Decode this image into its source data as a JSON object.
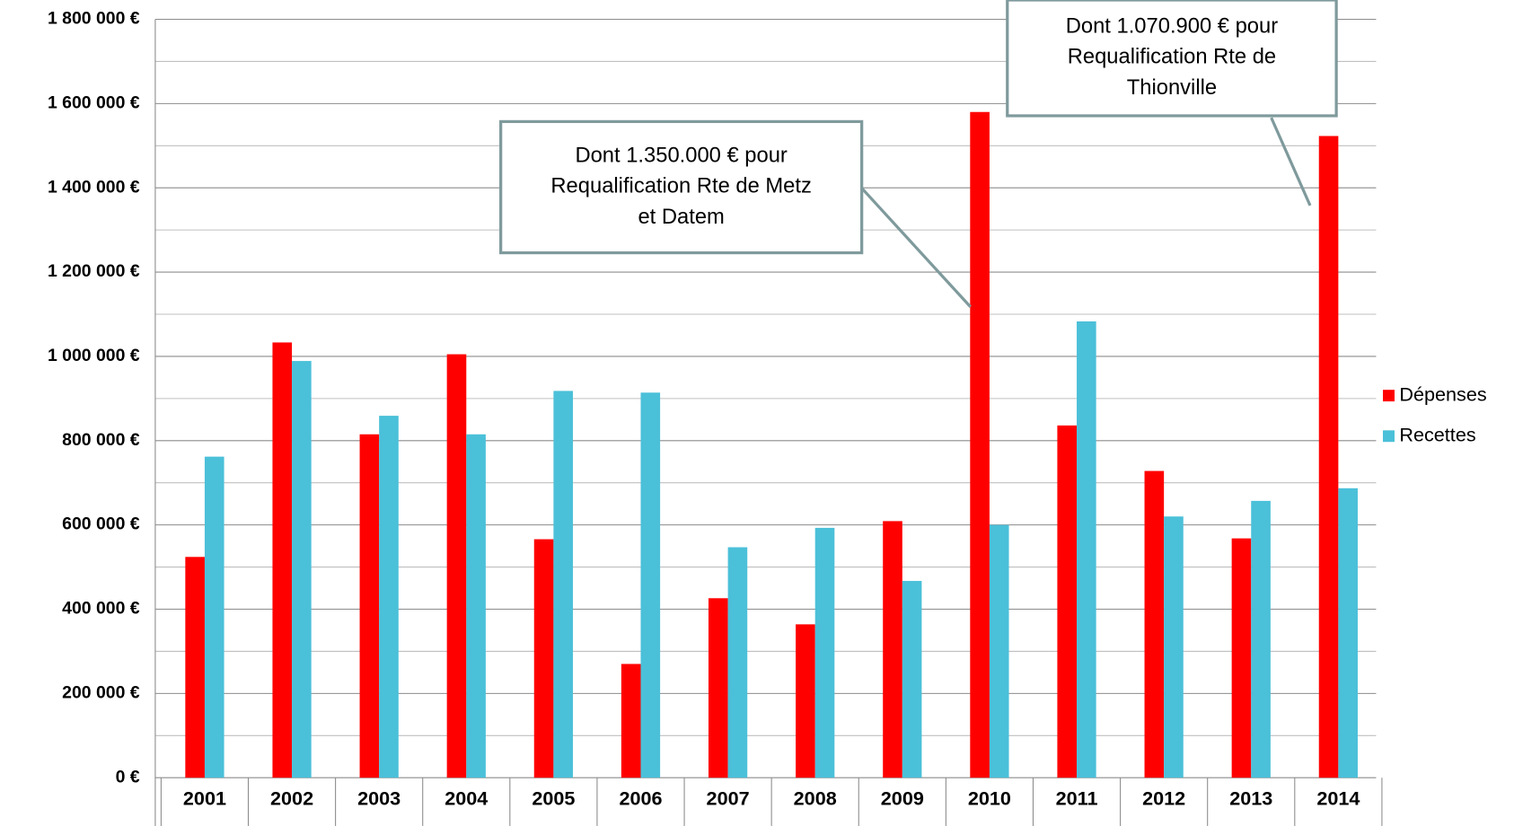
{
  "chart_data": {
    "type": "bar",
    "categories": [
      "2001",
      "2002",
      "2003",
      "2004",
      "2005",
      "2006",
      "2007",
      "2008",
      "2009",
      "2010",
      "2011",
      "2012",
      "2013",
      "2014"
    ],
    "series": [
      {
        "name": "Dépenses",
        "color": "#ff0000",
        "values": [
          524000,
          1033000,
          815000,
          1005000,
          566000,
          270000,
          426000,
          364000,
          609000,
          1580000,
          836000,
          728000,
          568000,
          1523000
        ]
      },
      {
        "name": "Recettes",
        "color": "#4bc0d9",
        "values": [
          762000,
          989000,
          859000,
          815000,
          918000,
          914000,
          547000,
          593000,
          467000,
          600000,
          1083000,
          620000,
          657000,
          687000
        ]
      }
    ],
    "ylim": [
      0,
      1800000
    ],
    "yticks": [
      {
        "value": 0,
        "label": "0 €"
      },
      {
        "value": 200000,
        "label": "200 000 €"
      },
      {
        "value": 400000,
        "label": "400 000 €"
      },
      {
        "value": 600000,
        "label": "600 000 €"
      },
      {
        "value": 800000,
        "label": "800 000 €"
      },
      {
        "value": 1000000,
        "label": "1 000 000 €"
      },
      {
        "value": 1200000,
        "label": "1 200 000 €"
      },
      {
        "value": 1400000,
        "label": "1 400 000 €"
      },
      {
        "value": 1600000,
        "label": "1 600 000 €"
      },
      {
        "value": 1800000,
        "label": "1 800 000 €"
      }
    ],
    "minor_gridlines": [
      100000,
      300000,
      500000,
      700000,
      900000,
      1100000,
      1300000,
      1500000,
      1700000
    ],
    "grid": true,
    "legend": "right",
    "annotations": [
      {
        "text": [
          "Dont 1.350.000 € pour",
          "Requalification Rte de Metz",
          "et Datem"
        ]
      },
      {
        "text": [
          "Dont 1.070.900 € pour",
          "Requalification Rte de",
          "Thionville"
        ]
      }
    ]
  }
}
